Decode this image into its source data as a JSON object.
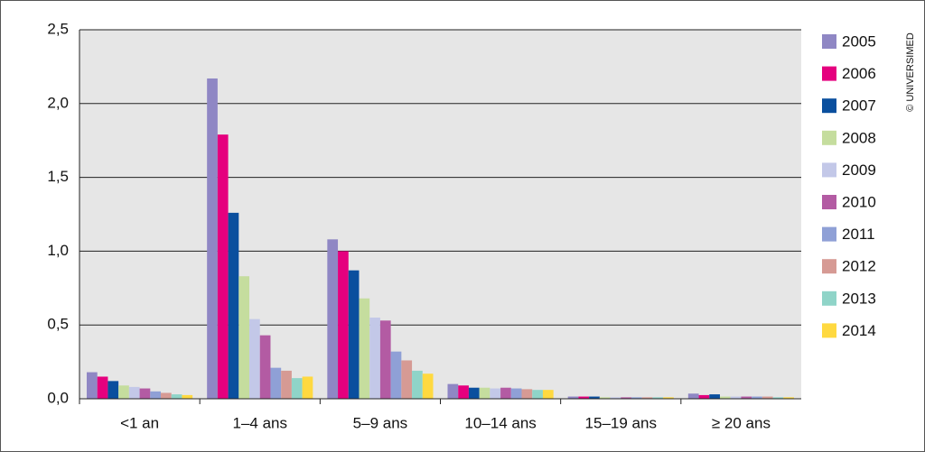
{
  "chart_data": {
    "type": "bar",
    "categories": [
      "<1 an",
      "1–4 ans",
      "5–9 ans",
      "10–14 ans",
      "15–19 ans",
      "≥ 20 ans"
    ],
    "series": [
      {
        "name": "2005",
        "color": "#8f87c4",
        "values": [
          0.18,
          2.17,
          1.08,
          0.1,
          0.015,
          0.035
        ]
      },
      {
        "name": "2006",
        "color": "#e5007e",
        "values": [
          0.15,
          1.79,
          1.0,
          0.09,
          0.015,
          0.025
        ]
      },
      {
        "name": "2007",
        "color": "#0a4f9e",
        "values": [
          0.12,
          1.26,
          0.87,
          0.075,
          0.015,
          0.03
        ]
      },
      {
        "name": "2008",
        "color": "#c5dd9e",
        "values": [
          0.09,
          0.83,
          0.68,
          0.075,
          0.01,
          0.015
        ]
      },
      {
        "name": "2009",
        "color": "#c3c8e8",
        "values": [
          0.08,
          0.54,
          0.55,
          0.07,
          0.01,
          0.015
        ]
      },
      {
        "name": "2010",
        "color": "#b35ba3",
        "values": [
          0.07,
          0.43,
          0.53,
          0.075,
          0.01,
          0.015
        ]
      },
      {
        "name": "2011",
        "color": "#8fa0d6",
        "values": [
          0.05,
          0.21,
          0.32,
          0.07,
          0.01,
          0.015
        ]
      },
      {
        "name": "2012",
        "color": "#d69a94",
        "values": [
          0.04,
          0.19,
          0.26,
          0.065,
          0.01,
          0.015
        ]
      },
      {
        "name": "2013",
        "color": "#8fd4c8",
        "values": [
          0.03,
          0.14,
          0.19,
          0.06,
          0.01,
          0.01
        ]
      },
      {
        "name": "2014",
        "color": "#ffd940",
        "values": [
          0.025,
          0.15,
          0.17,
          0.06,
          0.01,
          0.01
        ]
      }
    ],
    "ylim": [
      0,
      2.5
    ],
    "yticks": [
      {
        "value": 0,
        "label": "0,0"
      },
      {
        "value": 0.5,
        "label": "0,5"
      },
      {
        "value": 1,
        "label": "1,0"
      },
      {
        "value": 1.5,
        "label": "1,5"
      },
      {
        "value": 2,
        "label": "2,0"
      },
      {
        "value": 2.5,
        "label": "2,5"
      }
    ],
    "grid": true,
    "legend": "right",
    "credit": "© UNIVERSIMED"
  }
}
